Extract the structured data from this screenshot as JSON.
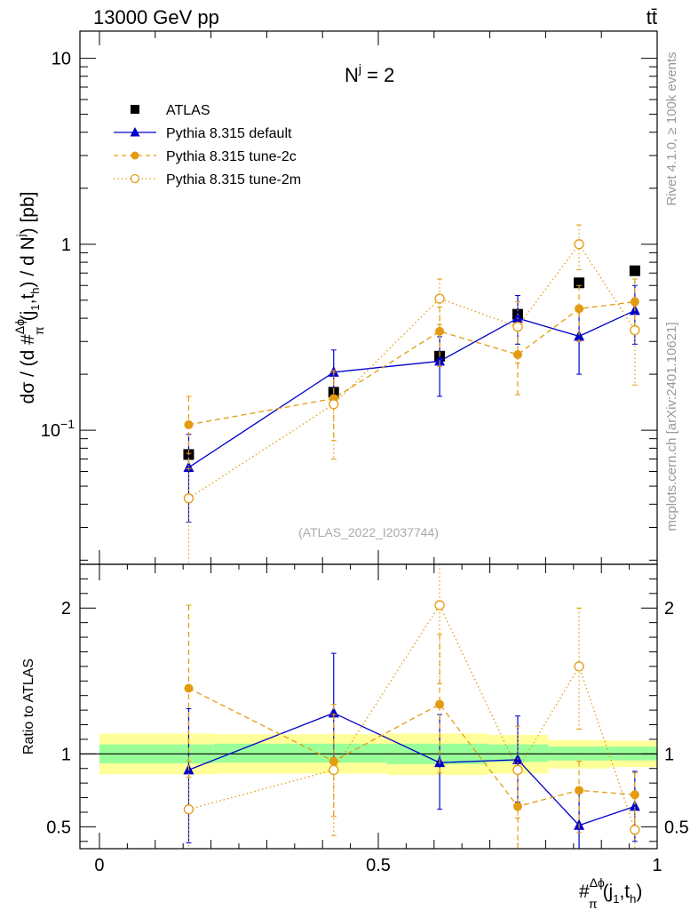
{
  "header": {
    "energy": "13000 GeV pp",
    "process": "tt̄"
  },
  "chart_data": [
    {
      "type": "scatter",
      "panel": "main",
      "title": "N^j = 2",
      "title_main": "N",
      "title_sup": "j",
      "title_rest": " = 2",
      "ylabel": "dσ / (d #Δϕ/π(j1,th) / d Nj) [pb]",
      "ylabel_parts": {
        "a": "dσ / (d #",
        "frac_num": "Δϕ",
        "frac_den": "π",
        "b": "(j",
        "sub1": "1",
        "c": ",t",
        "sub2": "h",
        "d": ") / d N",
        "sup": "j",
        "e": ") [pb]"
      },
      "yscale": "log",
      "ylim": [
        0.019,
        14
      ],
      "xlim": [
        -0.035,
        1.0
      ],
      "y_ticks": [
        {
          "value": 10,
          "label": "10"
        },
        {
          "value": 1,
          "label": "1"
        },
        {
          "value": 0.1,
          "label": "10",
          "sup": "−1"
        }
      ],
      "watermark": "(ATLAS_2022_I2037744)",
      "legend_position": "top-left",
      "series": [
        {
          "name": "ATLAS",
          "color": "#000000",
          "marker": "square",
          "line": "none",
          "x": [
            0.16,
            0.42,
            0.61,
            0.75,
            0.86,
            0.96
          ],
          "y": [
            0.074,
            0.16,
            0.25,
            0.42,
            0.62,
            0.72
          ],
          "err_lo": [
            0.07,
            0.154,
            0.24,
            0.41,
            0.61,
            0.71
          ],
          "err_hi": [
            0.078,
            0.166,
            0.26,
            0.43,
            0.63,
            0.73
          ]
        },
        {
          "name": "Pythia 8.315 default",
          "color": "#0000cc",
          "marker": "triangle",
          "line": "solid",
          "x": [
            0.16,
            0.42,
            0.61,
            0.75,
            0.86,
            0.96
          ],
          "y": [
            0.063,
            0.205,
            0.235,
            0.4,
            0.32,
            0.44
          ],
          "err_lo": [
            0.032,
            0.14,
            0.152,
            0.29,
            0.2,
            0.29
          ],
          "err_hi": [
            0.095,
            0.27,
            0.318,
            0.53,
            0.44,
            0.6
          ]
        },
        {
          "name": "Pythia 8.315 tune-2c",
          "color": "#e39b10",
          "marker": "circle",
          "line": "dashed",
          "x": [
            0.16,
            0.42,
            0.61,
            0.75,
            0.86,
            0.96
          ],
          "y": [
            0.107,
            0.148,
            0.34,
            0.255,
            0.45,
            0.49
          ],
          "err_lo": [
            0.062,
            0.088,
            0.22,
            0.155,
            0.3,
            0.33
          ],
          "err_hi": [
            0.152,
            0.21,
            0.46,
            0.355,
            0.6,
            0.65
          ]
        },
        {
          "name": "Pythia 8.315 tune-2m",
          "color": "#e39b10",
          "marker": "open-circle",
          "line": "dotted",
          "x": [
            0.16,
            0.42,
            0.61,
            0.75,
            0.86,
            0.96
          ],
          "y": [
            0.043,
            0.138,
            0.51,
            0.36,
            1.0,
            0.345
          ],
          "err_lo": [
            0.019,
            0.07,
            0.37,
            0.23,
            0.73,
            0.175
          ],
          "err_hi": [
            0.075,
            0.205,
            0.65,
            0.49,
            1.27,
            0.515
          ]
        }
      ]
    },
    {
      "type": "scatter",
      "panel": "ratio",
      "ylabel": "Ratio to ATLAS",
      "xlabel": "#Δϕ/π(j1,th)",
      "xlabel_parts": {
        "a": "#",
        "frac_num": "Δϕ",
        "frac_den": "π",
        "b": "(j",
        "sub1": "1",
        "c": ",t",
        "sub2": "h",
        "d": ")"
      },
      "yscale": "linear",
      "ylim": [
        0.35,
        2.3
      ],
      "xlim": [
        -0.035,
        1.0
      ],
      "y_ticks": [
        {
          "value": 2,
          "label": "2"
        },
        {
          "value": 1,
          "label": "1"
        },
        {
          "value": 0.5,
          "label": "0.5"
        }
      ],
      "x_ticks": [
        {
          "value": 0,
          "label": "0"
        },
        {
          "value": 0.5,
          "label": "0.5"
        },
        {
          "value": 1,
          "label": "1"
        }
      ],
      "uncertainty_bands": {
        "bins": [
          [
            0.0,
            0.205
          ],
          [
            0.205,
            0.515
          ],
          [
            0.515,
            0.695
          ],
          [
            0.695,
            0.805
          ],
          [
            0.805,
            0.915
          ],
          [
            0.915,
            1.0
          ]
        ],
        "inner_green": [
          [
            0.935,
            1.065
          ],
          [
            0.94,
            1.07
          ],
          [
            0.93,
            1.07
          ],
          [
            0.945,
            1.065
          ],
          [
            0.955,
            1.05
          ],
          [
            0.955,
            1.05
          ]
        ],
        "outer_yellow": [
          [
            0.86,
            1.14
          ],
          [
            0.865,
            1.135
          ],
          [
            0.855,
            1.14
          ],
          [
            0.865,
            1.13
          ],
          [
            0.9,
            1.095
          ],
          [
            0.91,
            1.09
          ]
        ],
        "green_color": "#99ff99",
        "yellow_color": "#ffff99"
      },
      "series": [
        {
          "name": "Pythia 8.315 default",
          "color": "#0000cc",
          "marker": "triangle",
          "line": "solid",
          "x": [
            0.16,
            0.42,
            0.61,
            0.75,
            0.86,
            0.96
          ],
          "y": [
            0.89,
            1.28,
            0.94,
            0.96,
            0.51,
            0.64
          ],
          "err_lo": [
            0.39,
            0.87,
            0.62,
            0.67,
            0.3,
            0.4
          ],
          "err_hi": [
            1.31,
            1.69,
            1.27,
            1.26,
            0.73,
            0.88
          ]
        },
        {
          "name": "Pythia 8.315 tune-2c",
          "color": "#e39b10",
          "marker": "circle",
          "line": "dashed",
          "x": [
            0.16,
            0.42,
            0.61,
            0.75,
            0.86,
            0.96
          ],
          "y": [
            1.45,
            0.95,
            1.34,
            0.64,
            0.75,
            0.72
          ],
          "err_lo": [
            0.84,
            0.57,
            0.87,
            0.3,
            0.46,
            0.45
          ],
          "err_hi": [
            2.02,
            1.34,
            1.82,
            0.87,
            0.95,
            0.87
          ]
        },
        {
          "name": "Pythia 8.315 tune-2m",
          "color": "#e39b10",
          "marker": "open-circle",
          "line": "dotted",
          "x": [
            0.16,
            0.42,
            0.61,
            0.75,
            0.86,
            0.96
          ],
          "y": [
            0.62,
            0.89,
            2.02,
            0.89,
            1.6,
            0.48
          ],
          "err_lo": [
            0.3,
            0.44,
            1.48,
            0.56,
            1.17,
            0.3
          ],
          "err_hi": [
            0.95,
            1.27,
            2.3,
            1.19,
            2.0,
            0.72
          ]
        }
      ]
    }
  ],
  "side_labels": {
    "rivet": "Rivet 4.1.0, ≥ 100k events",
    "mcplots": "mcplots.cern.ch [arXiv:2401.10621]"
  }
}
